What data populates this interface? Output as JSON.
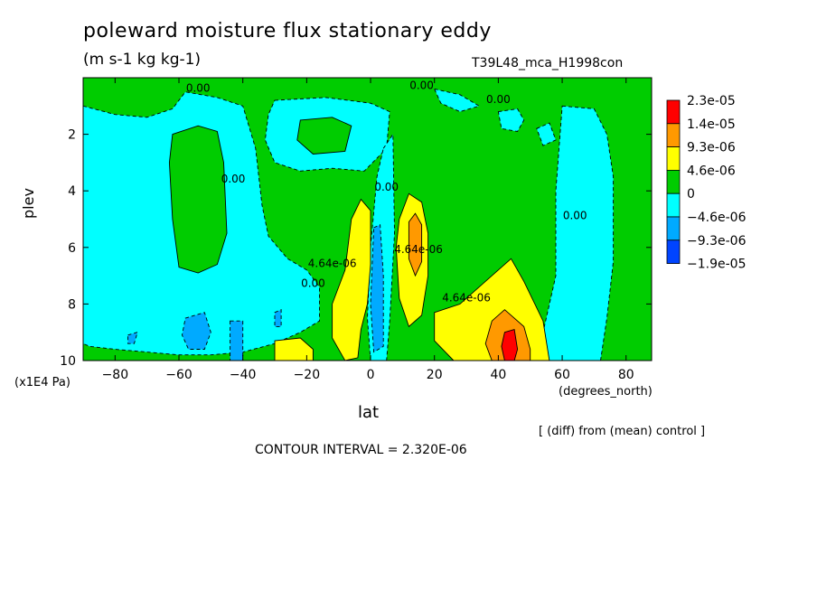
{
  "chart_data": {
    "type": "heatmap",
    "title": "poleward moisture flux stationary eddy",
    "units": "(m s-1 kg kg-1)",
    "run": "T39L48_mca_H1998con",
    "xlabel": "lat",
    "x_unit": "(degrees_north)",
    "ylabel": "plev",
    "y_unit": "(x1E4 Pa)",
    "xlim": [
      -90,
      88
    ],
    "ylim": [
      10,
      0
    ],
    "x_ticks": [
      -80,
      -60,
      -40,
      -20,
      0,
      20,
      40,
      60,
      80
    ],
    "y_ticks": [
      2,
      4,
      6,
      8,
      10
    ],
    "note": "[ (diff) from (mean) control ]",
    "contour_interval": "CONTOUR INTERVAL = 2.320E-06",
    "legend": {
      "position": "right",
      "labels": [
        "2.3e-05",
        "1.4e-05",
        "9.3e-06",
        "4.6e-06",
        "0",
        "-4.6e-06",
        "-9.3e-06",
        "-1.9e-05"
      ],
      "colors": [
        "#ff0000",
        "#ff9900",
        "#ffff00",
        "#00cc00",
        "#00ffff",
        "#00aaff",
        "#0044ff"
      ]
    },
    "contour_labels": [
      {
        "text": "0.00",
        "lat": -54,
        "plev": 0.5
      },
      {
        "text": "0.00",
        "lat": 16,
        "plev": 0.4
      },
      {
        "text": "0.00",
        "lat": 40,
        "plev": 0.9
      },
      {
        "text": "0.00",
        "lat": -43,
        "plev": 3.7
      },
      {
        "text": "0.00",
        "lat": 5,
        "plev": 4.0
      },
      {
        "text": "0.00",
        "lat": 64,
        "plev": 5.0
      },
      {
        "text": "4.64e-06",
        "lat": -12,
        "plev": 6.7
      },
      {
        "text": "4.64e-06",
        "lat": 15,
        "plev": 6.2
      },
      {
        "text": "4.64e-06",
        "lat": 30,
        "plev": 7.9
      },
      {
        "text": "0.00",
        "lat": -18,
        "plev": 7.4
      }
    ],
    "regions": [
      {
        "level": "negative",
        "color": "#00ffff",
        "polygon": [
          [
            -90,
            1.0
          ],
          [
            -80,
            1.3
          ],
          [
            -70,
            1.4
          ],
          [
            -62,
            1.1
          ],
          [
            -58,
            0.5
          ],
          [
            -48,
            0.7
          ],
          [
            -40,
            1.0
          ],
          [
            -36,
            2.5
          ],
          [
            -34,
            4.5
          ],
          [
            -32,
            5.6
          ],
          [
            -26,
            6.4
          ],
          [
            -20,
            6.8
          ],
          [
            -16,
            7.4
          ],
          [
            -16,
            8.6
          ],
          [
            -22,
            9.0
          ],
          [
            -30,
            9.4
          ],
          [
            -40,
            9.7
          ],
          [
            -50,
            9.8
          ],
          [
            -60,
            9.8
          ],
          [
            -70,
            9.7
          ],
          [
            -80,
            9.6
          ],
          [
            -88,
            9.5
          ],
          [
            -90,
            9.4
          ]
        ]
      },
      {
        "level": "positive",
        "color": "#00cc00",
        "polygon": [
          [
            -62,
            2.0
          ],
          [
            -54,
            1.7
          ],
          [
            -48,
            1.9
          ],
          [
            -46,
            3.0
          ],
          [
            -45,
            5.5
          ],
          [
            -48,
            6.6
          ],
          [
            -54,
            6.9
          ],
          [
            -60,
            6.7
          ],
          [
            -62,
            5.0
          ],
          [
            -63,
            3.0
          ]
        ]
      },
      {
        "level": "negative",
        "color": "#00ffff",
        "polygon": [
          [
            -30,
            0.8
          ],
          [
            -14,
            0.7
          ],
          [
            0,
            0.9
          ],
          [
            6,
            1.2
          ],
          [
            5,
            2.5
          ],
          [
            -2,
            3.3
          ],
          [
            -12,
            3.2
          ],
          [
            -22,
            3.3
          ],
          [
            -30,
            3.0
          ],
          [
            -33,
            2.2
          ],
          [
            -32,
            1.3
          ]
        ]
      },
      {
        "level": "positive",
        "color": "#00cc00",
        "polygon": [
          [
            -22,
            1.5
          ],
          [
            -12,
            1.4
          ],
          [
            -6,
            1.7
          ],
          [
            -8,
            2.6
          ],
          [
            -18,
            2.7
          ],
          [
            -23,
            2.2
          ]
        ]
      },
      {
        "level": "negative",
        "color": "#00ffff",
        "polygon": [
          [
            4,
            2.5
          ],
          [
            7,
            2.0
          ],
          [
            7.5,
            5.5
          ],
          [
            6,
            8.6
          ],
          [
            5,
            10
          ],
          [
            0,
            10
          ],
          [
            -1,
            8.5
          ],
          [
            0,
            6.0
          ],
          [
            2,
            3.5
          ]
        ]
      },
      {
        "level": "negative",
        "color": "#00ffff",
        "polygon": [
          [
            60,
            1.0
          ],
          [
            70,
            1.1
          ],
          [
            74,
            2.0
          ],
          [
            76,
            3.5
          ],
          [
            76,
            6.5
          ],
          [
            74,
            8.5
          ],
          [
            72,
            10
          ],
          [
            56,
            10
          ],
          [
            54,
            9.0
          ],
          [
            58,
            7.0
          ],
          [
            58,
            4.0
          ]
        ]
      },
      {
        "level": "negative",
        "color": "#00ffff",
        "polygon": [
          [
            40,
            1.2
          ],
          [
            46,
            1.1
          ],
          [
            48,
            1.5
          ],
          [
            46,
            1.9
          ],
          [
            41,
            1.8
          ]
        ]
      },
      {
        "level": "negative",
        "color": "#00ffff",
        "polygon": [
          [
            52,
            1.8
          ],
          [
            56,
            1.6
          ],
          [
            58,
            2.2
          ],
          [
            54,
            2.4
          ]
        ]
      },
      {
        "level": "negative",
        "color": "#00ffff",
        "polygon": [
          [
            20,
            0.4
          ],
          [
            28,
            0.6
          ],
          [
            34,
            1.0
          ],
          [
            28,
            1.2
          ],
          [
            22,
            0.9
          ]
        ]
      },
      {
        "level": "neg-2",
        "color": "#00aaff",
        "polygon": [
          [
            -58,
            8.5
          ],
          [
            -52,
            8.3
          ],
          [
            -50,
            9.0
          ],
          [
            -52,
            9.6
          ],
          [
            -57,
            9.6
          ],
          [
            -59,
            9.1
          ]
        ]
      },
      {
        "level": "neg-2",
        "color": "#00aaff",
        "polygon": [
          [
            -44,
            8.6
          ],
          [
            -40,
            8.6
          ],
          [
            -40,
            10
          ],
          [
            -44,
            10
          ]
        ]
      },
      {
        "level": "neg-2",
        "color": "#00aaff",
        "polygon": [
          [
            1,
            5.3
          ],
          [
            3,
            5.2
          ],
          [
            4,
            7.0
          ],
          [
            4,
            9.5
          ],
          [
            1,
            9.7
          ],
          [
            0,
            8.0
          ]
        ]
      },
      {
        "level": "neg-2",
        "color": "#00aaff",
        "polygon": [
          [
            -76,
            9.1
          ],
          [
            -73,
            9.0
          ],
          [
            -74,
            9.4
          ],
          [
            -76,
            9.4
          ]
        ]
      },
      {
        "level": "neg-2",
        "color": "#00aaff",
        "polygon": [
          [
            -30,
            8.3
          ],
          [
            -28,
            8.2
          ],
          [
            -28,
            8.8
          ],
          [
            -30,
            8.8
          ]
        ]
      },
      {
        "level": "pos-2",
        "color": "#ffff00",
        "polygon": [
          [
            -8,
            6.8
          ],
          [
            -6,
            5.0
          ],
          [
            -3,
            4.3
          ],
          [
            0,
            4.7
          ],
          [
            0,
            6.6
          ],
          [
            -1,
            8.0
          ],
          [
            -3,
            8.9
          ],
          [
            -4,
            9.9
          ],
          [
            -8,
            10
          ],
          [
            -12,
            9.2
          ],
          [
            -12,
            8.0
          ]
        ]
      },
      {
        "level": "pos-2",
        "color": "#ffff00",
        "polygon": [
          [
            9,
            5.0
          ],
          [
            12,
            4.1
          ],
          [
            16,
            4.4
          ],
          [
            18,
            5.5
          ],
          [
            18,
            7.0
          ],
          [
            16,
            8.4
          ],
          [
            12,
            8.8
          ],
          [
            9,
            7.8
          ],
          [
            8,
            6.0
          ]
        ]
      },
      {
        "level": "pos-2",
        "color": "#ffff00",
        "polygon": [
          [
            -30,
            9.3
          ],
          [
            -22,
            9.2
          ],
          [
            -18,
            9.6
          ],
          [
            -18,
            10
          ],
          [
            -30,
            10
          ]
        ]
      },
      {
        "level": "pos-2",
        "color": "#ffff00",
        "polygon": [
          [
            20,
            8.3
          ],
          [
            28,
            8.0
          ],
          [
            38,
            7.0
          ],
          [
            44,
            6.4
          ],
          [
            48,
            7.2
          ],
          [
            54,
            8.6
          ],
          [
            56,
            10
          ],
          [
            26,
            10
          ],
          [
            20,
            9.3
          ]
        ]
      },
      {
        "level": "pos-3",
        "color": "#ff9900",
        "polygon": [
          [
            12,
            5.1
          ],
          [
            14,
            4.8
          ],
          [
            16,
            5.2
          ],
          [
            16,
            6.5
          ],
          [
            14,
            7.0
          ],
          [
            12,
            6.4
          ]
        ]
      },
      {
        "level": "pos-3",
        "color": "#ff9900",
        "polygon": [
          [
            38,
            8.6
          ],
          [
            42,
            8.2
          ],
          [
            48,
            8.8
          ],
          [
            50,
            9.6
          ],
          [
            50,
            10
          ],
          [
            38,
            10
          ],
          [
            36,
            9.4
          ]
        ]
      },
      {
        "level": "pos-4",
        "color": "#ff0000",
        "polygon": [
          [
            42,
            9.0
          ],
          [
            45,
            8.9
          ],
          [
            46,
            9.6
          ],
          [
            45,
            10
          ],
          [
            42,
            10
          ],
          [
            41,
            9.5
          ]
        ]
      }
    ]
  }
}
